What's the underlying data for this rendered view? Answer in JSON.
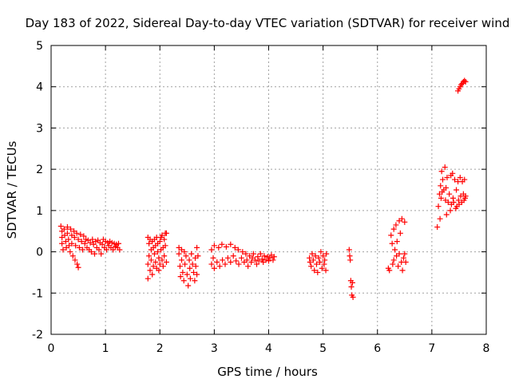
{
  "chart_data": {
    "type": "scatter",
    "title": "Day 183 of 2022, Sidereal Day-to-day VTEC variation (SDTVAR) for receiver wind",
    "xlabel": "GPS time / hours",
    "ylabel": "SDTVAR / TECUs",
    "xlim": [
      0,
      8
    ],
    "ylim": [
      -2,
      5
    ],
    "xticks": [
      "0",
      "1",
      "2",
      "3",
      "4",
      "5",
      "6",
      "7",
      "8"
    ],
    "yticks": [
      "-2",
      "-1",
      "0",
      "1",
      "2",
      "3",
      "4",
      "5"
    ],
    "grid": true,
    "marker": "plus",
    "color": "#ff0000",
    "series": [
      {
        "name": "SDTVAR",
        "points": [
          [
            0.18,
            0.62
          ],
          [
            0.2,
            0.5
          ],
          [
            0.2,
            0.35
          ],
          [
            0.2,
            0.2
          ],
          [
            0.22,
            0.05
          ],
          [
            0.24,
            0.55
          ],
          [
            0.25,
            0.4
          ],
          [
            0.27,
            0.25
          ],
          [
            0.28,
            0.1
          ],
          [
            0.3,
            0.6
          ],
          [
            0.3,
            0.45
          ],
          [
            0.32,
            0.3
          ],
          [
            0.33,
            0.15
          ],
          [
            0.35,
            0.0
          ],
          [
            0.36,
            0.55
          ],
          [
            0.38,
            0.4
          ],
          [
            0.38,
            0.2
          ],
          [
            0.4,
            -0.1
          ],
          [
            0.42,
            0.5
          ],
          [
            0.43,
            0.35
          ],
          [
            0.44,
            -0.2
          ],
          [
            0.45,
            0.15
          ],
          [
            0.47,
            0.45
          ],
          [
            0.48,
            -0.3
          ],
          [
            0.5,
            0.3
          ],
          [
            0.5,
            -0.38
          ],
          [
            0.52,
            0.1
          ],
          [
            0.54,
            0.42
          ],
          [
            0.56,
            0.25
          ],
          [
            0.58,
            0.05
          ],
          [
            0.6,
            0.38
          ],
          [
            0.62,
            0.2
          ],
          [
            0.64,
            0.3
          ],
          [
            0.66,
            0.1
          ],
          [
            0.68,
            0.28
          ],
          [
            0.7,
            0.05
          ],
          [
            0.72,
            0.22
          ],
          [
            0.74,
            0.0
          ],
          [
            0.76,
            0.3
          ],
          [
            0.78,
            0.18
          ],
          [
            0.8,
            -0.05
          ],
          [
            0.82,
            0.25
          ],
          [
            0.84,
            0.1
          ],
          [
            0.86,
            0.28
          ],
          [
            0.88,
            0.05
          ],
          [
            0.9,
            0.22
          ],
          [
            0.92,
            -0.05
          ],
          [
            0.94,
            0.18
          ],
          [
            0.96,
            0.3
          ],
          [
            0.98,
            0.1
          ],
          [
            1.0,
            0.25
          ],
          [
            1.02,
            0.05
          ],
          [
            1.04,
            0.22
          ],
          [
            1.06,
            0.15
          ],
          [
            1.08,
            0.25
          ],
          [
            1.1,
            0.1
          ],
          [
            1.12,
            0.22
          ],
          [
            1.14,
            0.05
          ],
          [
            1.16,
            0.2
          ],
          [
            1.18,
            0.12
          ],
          [
            1.2,
            0.18
          ],
          [
            1.22,
            0.1
          ],
          [
            1.24,
            0.2
          ],
          [
            1.26,
            0.05
          ],
          [
            1.78,
            0.35
          ],
          [
            1.78,
            -0.3
          ],
          [
            1.78,
            -0.65
          ],
          [
            1.8,
            0.2
          ],
          [
            1.8,
            -0.1
          ],
          [
            1.82,
            0.3
          ],
          [
            1.82,
            -0.45
          ],
          [
            1.84,
            0.05
          ],
          [
            1.84,
            -0.2
          ],
          [
            1.86,
            0.25
          ],
          [
            1.86,
            -0.55
          ],
          [
            1.88,
            0.1
          ],
          [
            1.88,
            -0.35
          ],
          [
            1.9,
            0.3
          ],
          [
            1.9,
            -0.05
          ],
          [
            1.92,
            -0.25
          ],
          [
            1.92,
            0.15
          ],
          [
            1.94,
            0.35
          ],
          [
            1.94,
            -0.4
          ],
          [
            1.96,
            0.0
          ],
          [
            1.96,
            0.2
          ],
          [
            1.98,
            -0.15
          ],
          [
            1.98,
            -0.45
          ],
          [
            2.0,
            0.25
          ],
          [
            2.0,
            -0.3
          ],
          [
            2.02,
            0.05
          ],
          [
            2.02,
            0.35
          ],
          [
            2.04,
            -0.2
          ],
          [
            2.04,
            0.4
          ],
          [
            2.06,
            0.1
          ],
          [
            2.06,
            -0.35
          ],
          [
            2.08,
            0.3
          ],
          [
            2.08,
            -0.1
          ],
          [
            2.1,
            0.45
          ],
          [
            2.1,
            0.15
          ],
          [
            2.12,
            -0.25
          ],
          [
            2.12,
            0.45
          ],
          [
            2.35,
            0.1
          ],
          [
            2.35,
            -0.05
          ],
          [
            2.37,
            -0.35
          ],
          [
            2.38,
            -0.6
          ],
          [
            2.4,
            0.05
          ],
          [
            2.4,
            -0.2
          ],
          [
            2.42,
            -0.5
          ],
          [
            2.44,
            -0.7
          ],
          [
            2.45,
            0.0
          ],
          [
            2.46,
            -0.3
          ],
          [
            2.48,
            -0.1
          ],
          [
            2.5,
            -0.55
          ],
          [
            2.52,
            -0.82
          ],
          [
            2.54,
            -0.2
          ],
          [
            2.55,
            -0.4
          ],
          [
            2.56,
            -0.65
          ],
          [
            2.58,
            -0.05
          ],
          [
            2.6,
            -0.3
          ],
          [
            2.62,
            -0.5
          ],
          [
            2.64,
            -0.7
          ],
          [
            2.65,
            -0.15
          ],
          [
            2.66,
            -0.35
          ],
          [
            2.68,
            0.1
          ],
          [
            2.68,
            -0.55
          ],
          [
            2.7,
            -0.1
          ],
          [
            2.95,
            0.05
          ],
          [
            2.95,
            -0.3
          ],
          [
            2.98,
            -0.15
          ],
          [
            3.0,
            0.15
          ],
          [
            3.0,
            -0.4
          ],
          [
            3.05,
            -0.25
          ],
          [
            3.08,
            0.1
          ],
          [
            3.1,
            -0.35
          ],
          [
            3.14,
            0.18
          ],
          [
            3.15,
            -0.2
          ],
          [
            3.2,
            -0.3
          ],
          [
            3.22,
            0.12
          ],
          [
            3.25,
            -0.15
          ],
          [
            3.3,
            0.18
          ],
          [
            3.3,
            -0.25
          ],
          [
            3.35,
            -0.1
          ],
          [
            3.38,
            0.1
          ],
          [
            3.4,
            -0.22
          ],
          [
            3.44,
            0.05
          ],
          [
            3.45,
            -0.3
          ],
          [
            3.5,
            -0.15
          ],
          [
            3.52,
            0.0
          ],
          [
            3.55,
            -0.25
          ],
          [
            3.58,
            -0.05
          ],
          [
            3.6,
            -0.2
          ],
          [
            3.62,
            -0.35
          ],
          [
            3.65,
            -0.1
          ],
          [
            3.68,
            -0.25
          ],
          [
            3.7,
            -0.15
          ],
          [
            3.72,
            -0.05
          ],
          [
            3.75,
            -0.2
          ],
          [
            3.78,
            -0.3
          ],
          [
            3.8,
            -0.12
          ],
          [
            3.82,
            -0.22
          ],
          [
            3.85,
            -0.05
          ],
          [
            3.88,
            -0.18
          ],
          [
            3.9,
            -0.25
          ],
          [
            3.92,
            -0.1
          ],
          [
            3.95,
            -0.2
          ],
          [
            3.98,
            -0.12
          ],
          [
            4.0,
            -0.22
          ],
          [
            4.02,
            -0.15
          ],
          [
            4.05,
            -0.08
          ],
          [
            4.08,
            -0.2
          ],
          [
            4.1,
            -0.12
          ],
          [
            4.75,
            -0.15
          ],
          [
            4.76,
            -0.25
          ],
          [
            4.78,
            -0.35
          ],
          [
            4.8,
            -0.05
          ],
          [
            4.82,
            -0.2
          ],
          [
            4.84,
            -0.45
          ],
          [
            4.86,
            -0.1
          ],
          [
            4.88,
            -0.3
          ],
          [
            4.9,
            -0.5
          ],
          [
            4.92,
            -0.15
          ],
          [
            4.94,
            -0.25
          ],
          [
            4.96,
            0.0
          ],
          [
            4.98,
            -0.4
          ],
          [
            5.0,
            -0.1
          ],
          [
            5.02,
            -0.3
          ],
          [
            5.03,
            -0.2
          ],
          [
            5.05,
            -0.45
          ],
          [
            5.06,
            -0.05
          ],
          [
            5.48,
            0.05
          ],
          [
            5.49,
            -0.1
          ],
          [
            5.5,
            -0.2
          ],
          [
            5.51,
            -0.7
          ],
          [
            5.52,
            -0.85
          ],
          [
            5.53,
            -1.05
          ],
          [
            5.54,
            -0.75
          ],
          [
            5.55,
            -1.1
          ],
          [
            6.2,
            -0.4
          ],
          [
            6.22,
            -0.45
          ],
          [
            6.25,
            0.4
          ],
          [
            6.27,
            0.2
          ],
          [
            6.28,
            -0.3
          ],
          [
            6.3,
            0.55
          ],
          [
            6.3,
            -0.2
          ],
          [
            6.32,
            0.05
          ],
          [
            6.34,
            0.65
          ],
          [
            6.35,
            -0.1
          ],
          [
            6.36,
            0.25
          ],
          [
            6.38,
            -0.35
          ],
          [
            6.4,
            0.75
          ],
          [
            6.4,
            -0.05
          ],
          [
            6.42,
            0.45
          ],
          [
            6.44,
            -0.25
          ],
          [
            6.45,
            0.8
          ],
          [
            6.46,
            -0.45
          ],
          [
            6.48,
            -0.15
          ],
          [
            6.5,
            0.72
          ],
          [
            6.5,
            -0.05
          ],
          [
            6.52,
            -0.25
          ],
          [
            7.1,
            0.6
          ],
          [
            7.12,
            1.1
          ],
          [
            7.14,
            1.4
          ],
          [
            7.15,
            0.8
          ],
          [
            7.16,
            1.6
          ],
          [
            7.17,
            1.3
          ],
          [
            7.18,
            1.95
          ],
          [
            7.19,
            1.45
          ],
          [
            7.2,
            1.75
          ],
          [
            7.22,
            1.5
          ],
          [
            7.24,
            2.05
          ],
          [
            7.25,
            1.25
          ],
          [
            7.26,
            1.55
          ],
          [
            7.27,
            0.9
          ],
          [
            7.28,
            1.8
          ],
          [
            7.3,
            1.2
          ],
          [
            7.32,
            1.4
          ],
          [
            7.34,
            1.0
          ],
          [
            7.35,
            1.85
          ],
          [
            7.36,
            1.15
          ],
          [
            7.38,
            1.9
          ],
          [
            7.39,
            1.3
          ],
          [
            7.4,
            1.2
          ],
          [
            7.42,
            1.75
          ],
          [
            7.44,
            1.05
          ],
          [
            7.45,
            1.5
          ],
          [
            7.46,
            1.1
          ],
          [
            7.48,
            1.7
          ],
          [
            7.49,
            1.25
          ],
          [
            7.5,
            1.15
          ],
          [
            7.52,
            1.8
          ],
          [
            7.53,
            1.35
          ],
          [
            7.55,
            1.2
          ],
          [
            7.56,
            1.7
          ],
          [
            7.58,
            1.4
          ],
          [
            7.59,
            1.25
          ],
          [
            7.6,
            1.75
          ],
          [
            7.61,
            1.3
          ],
          [
            7.62,
            1.35
          ],
          [
            7.48,
            3.9
          ],
          [
            7.5,
            3.95
          ],
          [
            7.52,
            4.0
          ],
          [
            7.54,
            4.05
          ],
          [
            7.56,
            4.08
          ],
          [
            7.58,
            4.12
          ],
          [
            7.6,
            4.15
          ],
          [
            7.62,
            4.12
          ]
        ]
      }
    ]
  }
}
